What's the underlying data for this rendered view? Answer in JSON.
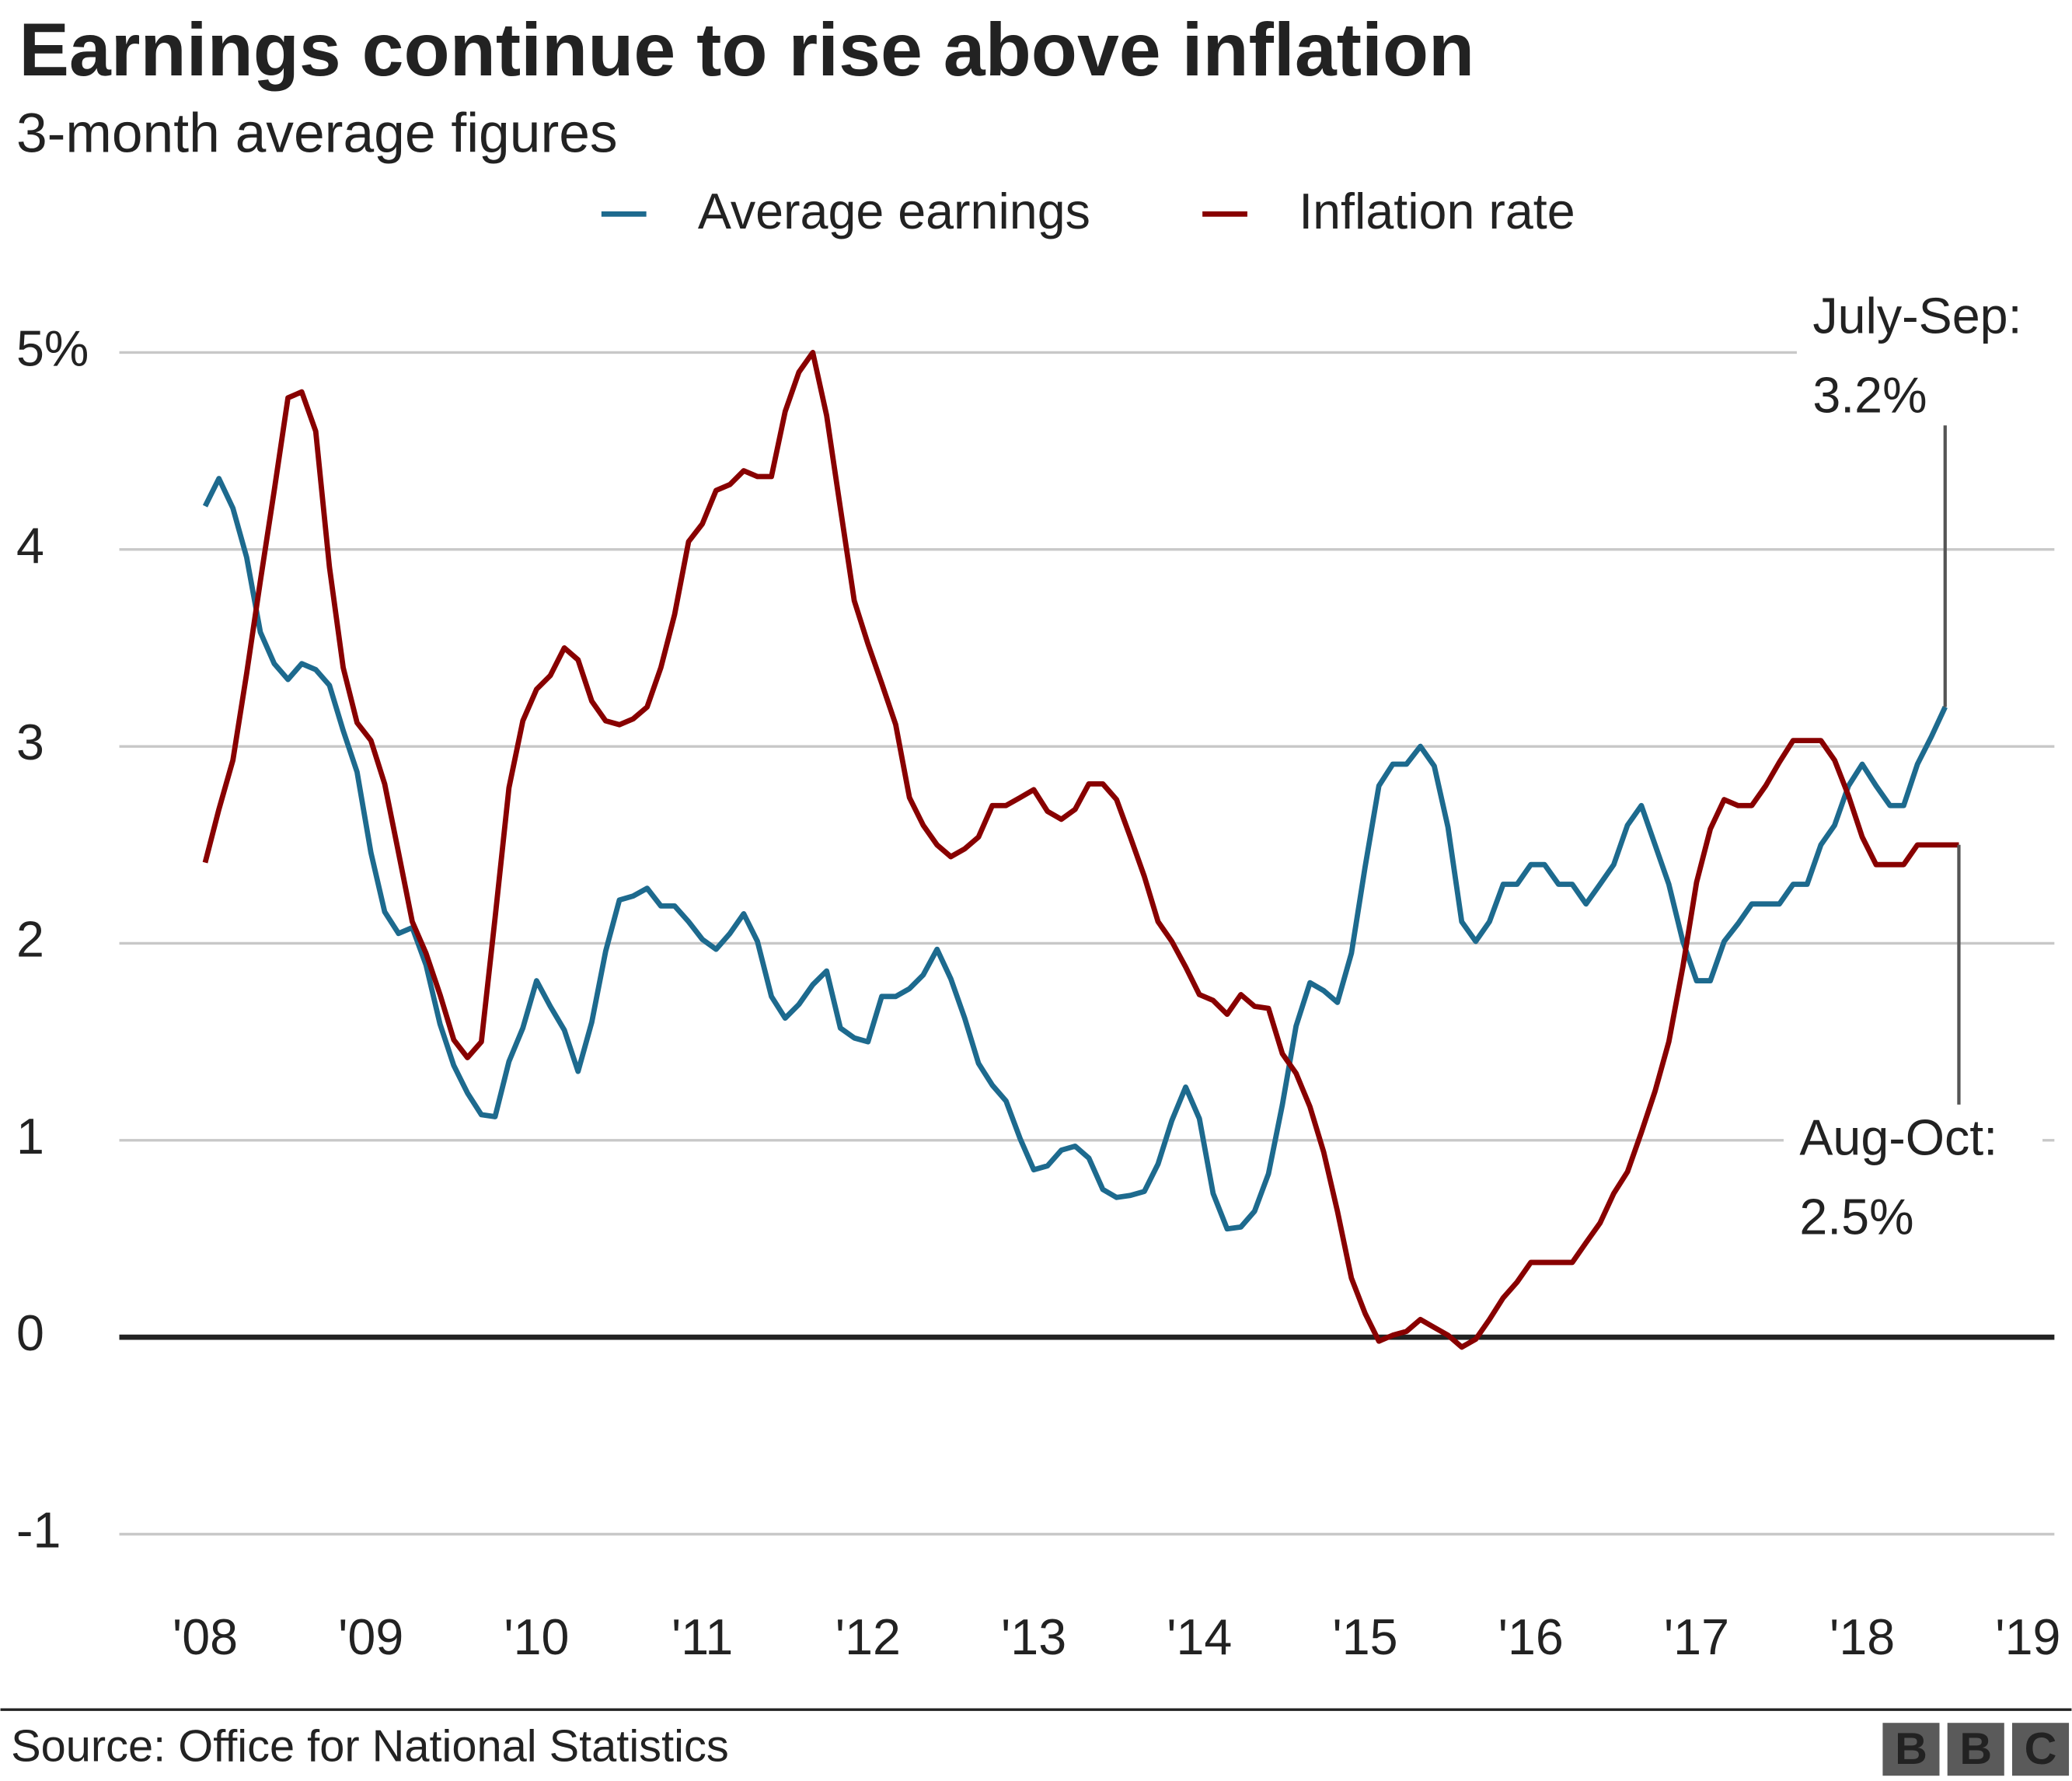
{
  "chart_data": {
    "type": "line",
    "title": "Earnings continue to rise above inflation",
    "subtitle": "3-month average figures",
    "x": [
      2008,
      2008.083,
      2008.167,
      2008.25,
      2008.333,
      2008.417,
      2008.5,
      2008.583,
      2008.667,
      2008.75,
      2008.833,
      2008.917,
      2009,
      2009.083,
      2009.167,
      2009.25,
      2009.333,
      2009.417,
      2009.5,
      2009.583,
      2009.667,
      2009.75,
      2009.833,
      2009.917,
      2010,
      2010.083,
      2010.167,
      2010.25,
      2010.333,
      2010.417,
      2010.5,
      2010.583,
      2010.667,
      2010.75,
      2010.833,
      2010.917,
      2011,
      2011.083,
      2011.167,
      2011.25,
      2011.333,
      2011.417,
      2011.5,
      2011.583,
      2011.667,
      2011.75,
      2011.833,
      2011.917,
      2012,
      2012.083,
      2012.167,
      2012.25,
      2012.333,
      2012.417,
      2012.5,
      2012.583,
      2012.667,
      2012.75,
      2012.833,
      2012.917,
      2013,
      2013.083,
      2013.167,
      2013.25,
      2013.333,
      2013.417,
      2013.5,
      2013.583,
      2013.667,
      2013.75,
      2013.833,
      2013.917,
      2014,
      2014.083,
      2014.167,
      2014.25,
      2014.333,
      2014.417,
      2014.5,
      2014.583,
      2014.667,
      2014.75,
      2014.833,
      2014.917,
      2015,
      2015.083,
      2015.167,
      2015.25,
      2015.333,
      2015.417,
      2015.5,
      2015.583,
      2015.667,
      2015.75,
      2015.833,
      2015.917,
      2016,
      2016.083,
      2016.167,
      2016.25,
      2016.333,
      2016.417,
      2016.5,
      2016.583,
      2016.667,
      2016.75,
      2016.833,
      2016.917,
      2017,
      2017.083,
      2017.167,
      2017.25,
      2017.333,
      2017.417,
      2017.5,
      2017.583,
      2017.667,
      2017.75,
      2017.833,
      2017.917,
      2018,
      2018.083,
      2018.167,
      2018.25,
      2018.333,
      2018.417,
      2018.5,
      2018.583
    ],
    "series": [
      {
        "name": "Average earnings",
        "color": "#1d6a8e",
        "values": [
          4.22,
          4.36,
          4.21,
          3.96,
          3.58,
          3.42,
          3.34,
          3.42,
          3.39,
          3.31,
          3.08,
          2.87,
          2.46,
          2.16,
          2.05,
          2.08,
          1.89,
          1.59,
          1.38,
          1.24,
          1.13,
          1.12,
          1.4,
          1.57,
          1.81,
          1.68,
          1.56,
          1.35,
          1.6,
          1.96,
          2.22,
          2.24,
          2.28,
          2.19,
          2.19,
          2.11,
          2.02,
          1.97,
          2.05,
          2.15,
          2.01,
          1.73,
          1.62,
          1.69,
          1.79,
          1.86,
          1.57,
          1.52,
          1.5,
          1.73,
          1.73,
          1.77,
          1.84,
          1.97,
          1.82,
          1.62,
          1.39,
          1.28,
          1.2,
          1.01,
          0.85,
          0.87,
          0.95,
          0.97,
          0.91,
          0.75,
          0.71,
          0.72,
          0.74,
          0.88,
          1.1,
          1.27,
          1.11,
          0.73,
          0.55,
          0.56,
          0.64,
          0.83,
          1.18,
          1.58,
          1.8,
          1.76,
          1.7,
          1.95,
          2.39,
          2.8,
          2.91,
          2.91,
          3.0,
          2.9,
          2.59,
          2.11,
          2.01,
          2.11,
          2.3,
          2.3,
          2.4,
          2.4,
          2.3,
          2.3,
          2.2,
          2.3,
          2.4,
          2.6,
          2.7,
          2.5,
          2.3,
          2.01,
          1.81,
          1.81,
          2.01,
          2.1,
          2.2,
          2.2,
          2.2,
          2.3,
          2.3,
          2.5,
          2.6,
          2.8,
          2.91,
          2.8,
          2.7,
          2.7,
          2.91,
          3.05,
          3.2,
          null
        ]
      },
      {
        "name": "Inflation rate",
        "color": "#880000",
        "values": [
          2.41,
          2.68,
          2.93,
          3.37,
          3.84,
          4.3,
          4.77,
          4.8,
          4.6,
          3.91,
          3.4,
          3.12,
          3.03,
          2.81,
          2.46,
          2.11,
          1.95,
          1.74,
          1.51,
          1.42,
          1.5,
          2.13,
          2.79,
          3.13,
          3.29,
          3.36,
          3.5,
          3.44,
          3.23,
          3.13,
          3.11,
          3.14,
          3.2,
          3.4,
          3.67,
          4.04,
          4.13,
          4.3,
          4.33,
          4.4,
          4.37,
          4.37,
          4.7,
          4.9,
          5.0,
          4.68,
          4.21,
          3.74,
          3.52,
          3.32,
          3.11,
          2.74,
          2.6,
          2.5,
          2.44,
          2.48,
          2.54,
          2.7,
          2.7,
          2.74,
          2.78,
          2.67,
          2.63,
          2.68,
          2.81,
          2.81,
          2.73,
          2.54,
          2.34,
          2.11,
          2.01,
          1.88,
          1.74,
          1.71,
          1.64,
          1.74,
          1.68,
          1.67,
          1.44,
          1.34,
          1.17,
          0.94,
          0.64,
          0.3,
          0.12,
          -0.02,
          0.01,
          0.03,
          0.09,
          0.05,
          0.01,
          -0.05,
          -0.01,
          0.09,
          0.2,
          0.28,
          0.38,
          0.38,
          0.38,
          0.38,
          0.48,
          0.58,
          0.73,
          0.84,
          1.04,
          1.25,
          1.5,
          1.88,
          2.31,
          2.58,
          2.73,
          2.7,
          2.7,
          2.8,
          2.92,
          3.03,
          3.03,
          3.03,
          2.93,
          2.75,
          2.54,
          2.4,
          2.4,
          2.4,
          2.5,
          2.5,
          2.5,
          2.5
        ]
      }
    ],
    "xlim": [
      2008,
      2019
    ],
    "xticks": [
      {
        "value": 2008,
        "label": "'08"
      },
      {
        "value": 2009,
        "label": "'09"
      },
      {
        "value": 2010,
        "label": "'10"
      },
      {
        "value": 2011,
        "label": "'11"
      },
      {
        "value": 2012,
        "label": "'12"
      },
      {
        "value": 2013,
        "label": "'13"
      },
      {
        "value": 2014,
        "label": "'14"
      },
      {
        "value": 2015,
        "label": "'15"
      },
      {
        "value": 2016,
        "label": "'16"
      },
      {
        "value": 2017,
        "label": "'17"
      },
      {
        "value": 2018,
        "label": "'18"
      },
      {
        "value": 2019,
        "label": "'19"
      }
    ],
    "ylim": [
      -1.2,
      5.2
    ],
    "yticks": [
      -1,
      0,
      1,
      2,
      3,
      4,
      {
        "value": 5,
        "label": "5%"
      }
    ],
    "grid": true,
    "legend": "top",
    "annotations": [
      [
        "July-Sep:",
        "3.2%"
      ],
      [
        "Aug-Oct:",
        "2.5%"
      ]
    ],
    "source": "Source: Office for National Statistics",
    "logo": [
      "B",
      "B",
      "C"
    ]
  }
}
